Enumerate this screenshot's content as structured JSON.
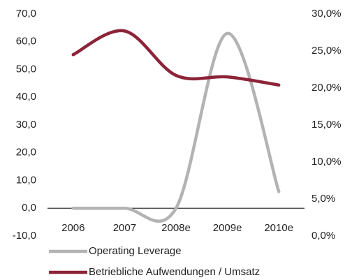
{
  "chart_data": {
    "type": "line",
    "categories": [
      "2006",
      "2007",
      "2008e",
      "2009e",
      "2010e"
    ],
    "series": [
      {
        "name": "Operating Leverage",
        "color": "#b3b3b3",
        "values": [
          0,
          0,
          0,
          63,
          6
        ]
      },
      {
        "name": "Betriebliche Aufwendungen / Umsatz",
        "color": "#8c2438",
        "axis": "y2",
        "values": [
          24.5,
          27.7,
          21.7,
          21.5,
          20.4
        ]
      }
    ],
    "ylim": [
      -10,
      70
    ],
    "yticks": [
      {
        "value": -10,
        "label": "-10,0"
      },
      {
        "value": 0,
        "label": "0,0"
      },
      {
        "value": 10,
        "label": "10,0"
      },
      {
        "value": 20,
        "label": "20,0"
      },
      {
        "value": 30,
        "label": "30,0"
      },
      {
        "value": 40,
        "label": "40,0"
      },
      {
        "value": 50,
        "label": "50,0"
      },
      {
        "value": 60,
        "label": "60,0"
      },
      {
        "value": 70,
        "label": "70,0"
      }
    ],
    "y2lim": [
      0,
      30
    ],
    "y2ticks": [
      {
        "value": 0,
        "label": "0,0%"
      },
      {
        "value": 5,
        "label": "5,0%"
      },
      {
        "value": 10,
        "label": "10,0%"
      },
      {
        "value": 15,
        "label": "15,0%"
      },
      {
        "value": 20,
        "label": "20,0%"
      },
      {
        "value": 25,
        "label": "25,0%"
      },
      {
        "value": 30,
        "label": "30,0%"
      }
    ],
    "grid": false,
    "legend": "bottom"
  }
}
